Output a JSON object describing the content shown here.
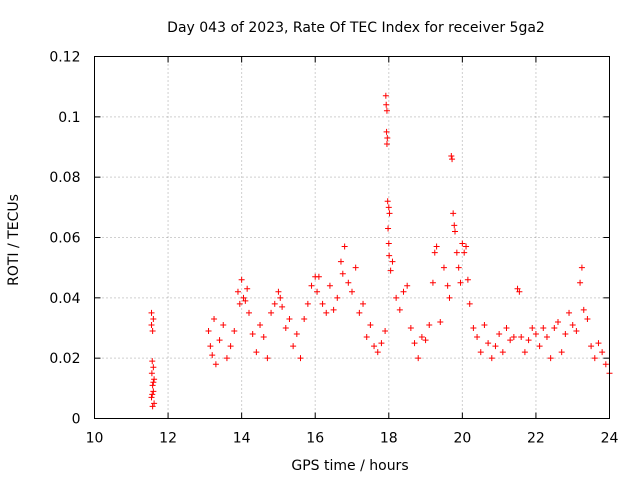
{
  "chart_data": {
    "type": "scatter",
    "title": "Day 043 of 2023, Rate Of TEC Index for receiver 5ga2",
    "xlabel": "GPS time / hours",
    "ylabel": "ROTI / TECUs",
    "xlim": [
      10,
      24
    ],
    "ylim": [
      0,
      0.12
    ],
    "xticks": [
      10,
      12,
      14,
      16,
      18,
      20,
      22,
      24
    ],
    "xtick_labels": [
      "10",
      "12",
      "14",
      "16",
      "18",
      "20",
      "22",
      "24"
    ],
    "yticks": [
      0,
      0.02,
      0.04,
      0.06,
      0.08,
      0.1,
      0.12
    ],
    "ytick_labels": [
      "0",
      "0.02",
      "0.04",
      "0.06",
      "0.08",
      "0.1",
      "0.12"
    ],
    "grid": true,
    "marker": "+",
    "series_color": "#ff0000",
    "series": [
      {
        "name": "ROTI",
        "points": [
          [
            11.55,
            0.035
          ],
          [
            11.55,
            0.031
          ],
          [
            11.58,
            0.029
          ],
          [
            11.6,
            0.033
          ],
          [
            11.57,
            0.019
          ],
          [
            11.6,
            0.017
          ],
          [
            11.56,
            0.015
          ],
          [
            11.62,
            0.013
          ],
          [
            11.58,
            0.011
          ],
          [
            11.6,
            0.009
          ],
          [
            11.55,
            0.007
          ],
          [
            11.62,
            0.005
          ],
          [
            11.58,
            0.004
          ],
          [
            11.6,
            0.012
          ],
          [
            11.57,
            0.008
          ],
          [
            13.1,
            0.029
          ],
          [
            13.15,
            0.024
          ],
          [
            13.2,
            0.021
          ],
          [
            13.25,
            0.033
          ],
          [
            13.3,
            0.018
          ],
          [
            13.4,
            0.026
          ],
          [
            13.5,
            0.031
          ],
          [
            13.6,
            0.02
          ],
          [
            13.7,
            0.024
          ],
          [
            13.8,
            0.029
          ],
          [
            13.9,
            0.042
          ],
          [
            13.95,
            0.038
          ],
          [
            14.0,
            0.046
          ],
          [
            14.05,
            0.04
          ],
          [
            14.1,
            0.039
          ],
          [
            14.15,
            0.043
          ],
          [
            14.2,
            0.035
          ],
          [
            14.3,
            0.028
          ],
          [
            14.4,
            0.022
          ],
          [
            14.5,
            0.031
          ],
          [
            14.6,
            0.027
          ],
          [
            14.7,
            0.02
          ],
          [
            14.8,
            0.035
          ],
          [
            14.9,
            0.038
          ],
          [
            15.0,
            0.042
          ],
          [
            15.05,
            0.04
          ],
          [
            15.1,
            0.037
          ],
          [
            15.2,
            0.03
          ],
          [
            15.3,
            0.033
          ],
          [
            15.4,
            0.024
          ],
          [
            15.5,
            0.028
          ],
          [
            15.6,
            0.02
          ],
          [
            15.7,
            0.033
          ],
          [
            15.8,
            0.038
          ],
          [
            15.9,
            0.044
          ],
          [
            16.0,
            0.047
          ],
          [
            16.05,
            0.042
          ],
          [
            16.1,
            0.047
          ],
          [
            16.2,
            0.038
          ],
          [
            16.3,
            0.035
          ],
          [
            16.4,
            0.044
          ],
          [
            16.5,
            0.036
          ],
          [
            16.6,
            0.04
          ],
          [
            16.7,
            0.052
          ],
          [
            16.75,
            0.048
          ],
          [
            16.8,
            0.057
          ],
          [
            16.9,
            0.045
          ],
          [
            17.0,
            0.042
          ],
          [
            17.1,
            0.05
          ],
          [
            17.2,
            0.035
          ],
          [
            17.3,
            0.038
          ],
          [
            17.4,
            0.027
          ],
          [
            17.5,
            0.031
          ],
          [
            17.6,
            0.024
          ],
          [
            17.7,
            0.022
          ],
          [
            17.8,
            0.025
          ],
          [
            17.9,
            0.029
          ],
          [
            17.92,
            0.107
          ],
          [
            17.93,
            0.104
          ],
          [
            17.95,
            0.102
          ],
          [
            17.94,
            0.095
          ],
          [
            17.96,
            0.093
          ],
          [
            17.95,
            0.091
          ],
          [
            17.97,
            0.072
          ],
          [
            18.0,
            0.07
          ],
          [
            18.02,
            0.068
          ],
          [
            17.98,
            0.063
          ],
          [
            18.0,
            0.058
          ],
          [
            18.01,
            0.054
          ],
          [
            18.05,
            0.049
          ],
          [
            18.1,
            0.052
          ],
          [
            18.2,
            0.04
          ],
          [
            18.3,
            0.036
          ],
          [
            18.4,
            0.042
          ],
          [
            18.5,
            0.044
          ],
          [
            18.6,
            0.03
          ],
          [
            18.7,
            0.025
          ],
          [
            18.8,
            0.02
          ],
          [
            18.9,
            0.027
          ],
          [
            19.0,
            0.026
          ],
          [
            19.1,
            0.031
          ],
          [
            19.2,
            0.045
          ],
          [
            19.25,
            0.055
          ],
          [
            19.3,
            0.057
          ],
          [
            19.4,
            0.032
          ],
          [
            19.5,
            0.05
          ],
          [
            19.6,
            0.044
          ],
          [
            19.65,
            0.04
          ],
          [
            19.7,
            0.087
          ],
          [
            19.72,
            0.086
          ],
          [
            19.75,
            0.068
          ],
          [
            19.78,
            0.064
          ],
          [
            19.8,
            0.062
          ],
          [
            19.85,
            0.055
          ],
          [
            19.9,
            0.05
          ],
          [
            19.95,
            0.045
          ],
          [
            20.0,
            0.058
          ],
          [
            20.05,
            0.055
          ],
          [
            20.1,
            0.057
          ],
          [
            20.15,
            0.046
          ],
          [
            20.2,
            0.038
          ],
          [
            20.3,
            0.03
          ],
          [
            20.4,
            0.027
          ],
          [
            20.5,
            0.022
          ],
          [
            20.6,
            0.031
          ],
          [
            20.7,
            0.025
          ],
          [
            20.8,
            0.02
          ],
          [
            20.9,
            0.024
          ],
          [
            21.0,
            0.028
          ],
          [
            21.1,
            0.022
          ],
          [
            21.2,
            0.03
          ],
          [
            21.3,
            0.026
          ],
          [
            21.4,
            0.027
          ],
          [
            21.5,
            0.043
          ],
          [
            21.55,
            0.042
          ],
          [
            21.6,
            0.027
          ],
          [
            21.7,
            0.022
          ],
          [
            21.8,
            0.026
          ],
          [
            21.9,
            0.03
          ],
          [
            22.0,
            0.028
          ],
          [
            22.1,
            0.024
          ],
          [
            22.2,
            0.03
          ],
          [
            22.3,
            0.027
          ],
          [
            22.4,
            0.02
          ],
          [
            22.5,
            0.03
          ],
          [
            22.6,
            0.032
          ],
          [
            22.7,
            0.022
          ],
          [
            22.8,
            0.028
          ],
          [
            22.9,
            0.035
          ],
          [
            23.0,
            0.031
          ],
          [
            23.1,
            0.029
          ],
          [
            23.2,
            0.045
          ],
          [
            23.25,
            0.05
          ],
          [
            23.3,
            0.036
          ],
          [
            23.4,
            0.033
          ],
          [
            23.5,
            0.024
          ],
          [
            23.6,
            0.02
          ],
          [
            23.7,
            0.025
          ],
          [
            23.8,
            0.022
          ],
          [
            23.9,
            0.018
          ],
          [
            24.0,
            0.015
          ]
        ]
      }
    ]
  }
}
